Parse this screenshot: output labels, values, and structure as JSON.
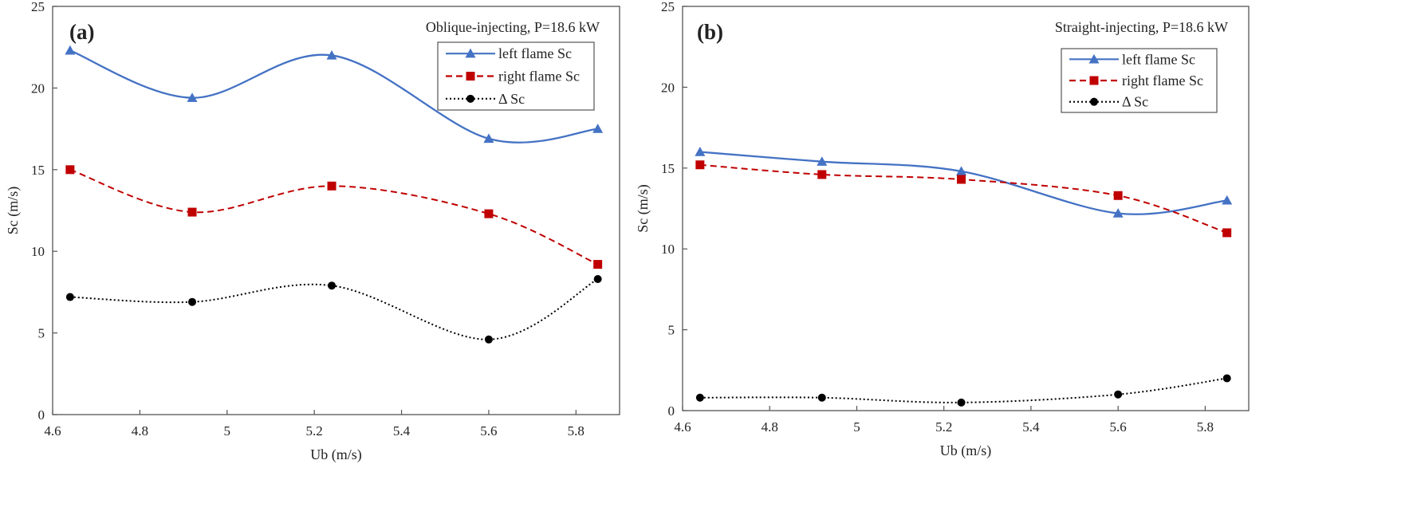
{
  "chart_data": [
    {
      "type": "line",
      "panel_label": "(a)",
      "annotation": "Oblique-injecting, P=18.6 kW",
      "xlabel": "Ub (m/s)",
      "ylabel": "Sc (m/s)",
      "xlim": [
        4.6,
        5.9
      ],
      "ylim": [
        0,
        25
      ],
      "xticks": [
        "4.6",
        "4.8",
        "5",
        "5.2",
        "5.4",
        "5.6",
        "5.8"
      ],
      "yticks": [
        "0",
        "5",
        "10",
        "15",
        "20",
        "25"
      ],
      "grid": false,
      "legend": "top-right",
      "x": [
        4.64,
        4.92,
        5.24,
        5.6,
        5.85
      ],
      "series": [
        {
          "name": "left flame Sc",
          "values": [
            22.3,
            19.4,
            22.0,
            16.9,
            17.5
          ],
          "color": "#4472C4",
          "marker": "triangle",
          "dash": "solid"
        },
        {
          "name": "right flame Sc",
          "values": [
            15.0,
            12.4,
            14.0,
            12.3,
            9.2
          ],
          "color": "#C00000",
          "marker": "square",
          "dash": "dashed"
        },
        {
          "name": "Δ Sc",
          "values": [
            7.2,
            6.9,
            7.9,
            4.6,
            8.3
          ],
          "color": "#000000",
          "marker": "circle",
          "dash": "dotted"
        }
      ]
    },
    {
      "type": "line",
      "panel_label": "(b)",
      "annotation": "Straight-injecting, P=18.6 kW",
      "xlabel": "Ub (m/s)",
      "ylabel": "Sc (m/s)",
      "xlim": [
        4.6,
        5.9
      ],
      "ylim": [
        0,
        25
      ],
      "xticks": [
        "4.6",
        "4.8",
        "5",
        "5.2",
        "5.4",
        "5.6",
        "5.8"
      ],
      "yticks": [
        "0",
        "5",
        "10",
        "15",
        "20",
        "25"
      ],
      "grid": false,
      "legend": "top-right",
      "x": [
        4.64,
        4.92,
        5.24,
        5.6,
        5.85
      ],
      "series": [
        {
          "name": "left flame Sc",
          "values": [
            16.0,
            15.4,
            14.8,
            12.2,
            13.0
          ],
          "color": "#4472C4",
          "marker": "triangle",
          "dash": "solid"
        },
        {
          "name": "right flame Sc",
          "values": [
            15.2,
            14.6,
            14.3,
            13.3,
            11.0
          ],
          "color": "#C00000",
          "marker": "square",
          "dash": "dashed"
        },
        {
          "name": "Δ Sc",
          "values": [
            0.8,
            0.8,
            0.5,
            1.0,
            2.0
          ],
          "color": "#000000",
          "marker": "circle",
          "dash": "dotted"
        }
      ]
    }
  ]
}
